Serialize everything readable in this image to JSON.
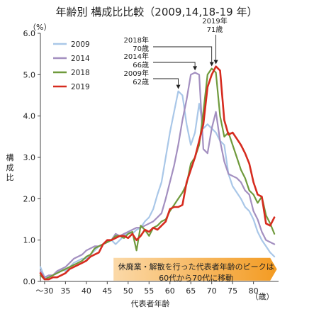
{
  "chart_data": {
    "type": "line",
    "title": "年齢別 構成比比較（2009,14,18-19 年）",
    "ylabel_unit": "（%）",
    "ylabel": "構成比",
    "xlabel": "代表者年齢",
    "x_unit": "（歳）",
    "x_first_tick_label": "～30",
    "xlim": [
      29,
      86
    ],
    "ylim": [
      0,
      6
    ],
    "xticks": [
      30,
      35,
      40,
      45,
      50,
      55,
      60,
      65,
      70,
      75,
      80
    ],
    "xtick_labels": [
      "～30",
      "35",
      "40",
      "45",
      "50",
      "55",
      "60",
      "65",
      "70",
      "75",
      "80"
    ],
    "yticks": [
      0,
      1,
      2,
      3,
      4,
      5,
      6
    ],
    "ytick_labels": [
      "0.0",
      "1.0",
      "2.0",
      "3.0",
      "4.0",
      "5.0",
      "6.0"
    ],
    "grid": false,
    "legend_position": "top-left",
    "series": [
      {
        "name": "2009",
        "color": "#a9c7e8",
        "x": [
          29,
          30,
          31,
          32,
          33,
          34,
          35,
          36,
          37,
          38,
          39,
          40,
          41,
          42,
          43,
          44,
          45,
          46,
          47,
          48,
          49,
          50,
          51,
          52,
          53,
          54,
          55,
          56,
          57,
          58,
          59,
          60,
          61,
          62,
          63,
          64,
          65,
          66,
          67,
          68,
          69,
          70,
          71,
          72,
          73,
          74,
          75,
          76,
          77,
          78,
          79,
          80,
          81,
          82,
          83,
          84,
          85
        ],
        "values": [
          0.35,
          0.1,
          0.1,
          0.15,
          0.2,
          0.3,
          0.25,
          0.35,
          0.45,
          0.5,
          0.55,
          0.55,
          0.65,
          0.75,
          0.85,
          0.9,
          0.95,
          1.0,
          0.9,
          1.0,
          1.1,
          1.2,
          1.15,
          1.25,
          1.3,
          1.45,
          1.55,
          1.75,
          2.1,
          2.4,
          3.0,
          3.6,
          4.1,
          4.6,
          4.5,
          3.8,
          3.3,
          3.6,
          4.3,
          3.7,
          3.8,
          3.7,
          3.6,
          3.4,
          3.3,
          2.6,
          2.3,
          2.15,
          2.0,
          1.8,
          1.7,
          1.5,
          1.2,
          1.0,
          0.85,
          0.7,
          0.6
        ]
      },
      {
        "name": "2014",
        "color": "#a38fc0",
        "x": [
          29,
          30,
          31,
          32,
          33,
          34,
          35,
          36,
          37,
          38,
          39,
          40,
          41,
          42,
          43,
          44,
          45,
          46,
          47,
          48,
          49,
          50,
          51,
          52,
          53,
          54,
          55,
          56,
          57,
          58,
          59,
          60,
          61,
          62,
          63,
          64,
          65,
          66,
          67,
          68,
          69,
          70,
          71,
          72,
          73,
          74,
          75,
          76,
          77,
          78,
          79,
          80,
          81,
          82,
          83,
          84,
          85
        ],
        "values": [
          0.25,
          0.1,
          0.15,
          0.15,
          0.25,
          0.3,
          0.35,
          0.45,
          0.55,
          0.6,
          0.65,
          0.75,
          0.8,
          0.85,
          0.85,
          0.9,
          0.95,
          1.0,
          1.15,
          1.1,
          1.15,
          1.2,
          1.25,
          1.3,
          1.3,
          1.35,
          1.4,
          1.45,
          1.55,
          1.65,
          2.0,
          2.4,
          2.8,
          3.3,
          3.9,
          4.4,
          5.0,
          5.05,
          5.0,
          3.2,
          3.1,
          3.7,
          4.1,
          3.4,
          2.9,
          2.6,
          2.55,
          2.5,
          2.4,
          2.2,
          2.1,
          1.7,
          1.5,
          1.2,
          1.0,
          0.95,
          0.9
        ]
      },
      {
        "name": "2018",
        "color": "#6f9a3c",
        "x": [
          29,
          30,
          31,
          32,
          33,
          34,
          35,
          36,
          37,
          38,
          39,
          40,
          41,
          42,
          43,
          44,
          45,
          46,
          47,
          48,
          49,
          50,
          51,
          52,
          53,
          54,
          55,
          56,
          57,
          58,
          59,
          60,
          61,
          62,
          63,
          64,
          65,
          66,
          67,
          68,
          69,
          70,
          71,
          72,
          73,
          74,
          75,
          76,
          77,
          78,
          79,
          80,
          81,
          82,
          83,
          84,
          85
        ],
        "values": [
          0.15,
          0.05,
          0.1,
          0.15,
          0.2,
          0.25,
          0.3,
          0.35,
          0.4,
          0.45,
          0.5,
          0.6,
          0.65,
          0.8,
          0.85,
          0.9,
          0.95,
          1.0,
          1.1,
          1.1,
          1.05,
          1.15,
          1.2,
          0.75,
          1.35,
          1.25,
          1.1,
          1.3,
          1.35,
          1.45,
          1.5,
          1.7,
          1.85,
          2.0,
          2.15,
          2.35,
          2.85,
          3.0,
          3.3,
          4.1,
          5.0,
          5.15,
          5.05,
          4.0,
          3.5,
          3.6,
          3.3,
          3.0,
          2.7,
          2.5,
          2.2,
          2.1,
          1.9,
          2.05,
          1.6,
          1.4,
          1.15
        ]
      },
      {
        "name": "2019",
        "color": "#d62b1f",
        "x": [
          29,
          30,
          31,
          32,
          33,
          34,
          35,
          36,
          37,
          38,
          39,
          40,
          41,
          42,
          43,
          44,
          45,
          46,
          47,
          48,
          49,
          50,
          51,
          52,
          53,
          54,
          55,
          56,
          57,
          58,
          59,
          60,
          61,
          62,
          63,
          64,
          65,
          66,
          67,
          68,
          69,
          70,
          71,
          72,
          73,
          74,
          75,
          76,
          77,
          78,
          79,
          80,
          81,
          82,
          83,
          84,
          85
        ],
        "values": [
          0.2,
          0.05,
          0.05,
          0.1,
          0.1,
          0.15,
          0.2,
          0.3,
          0.35,
          0.4,
          0.45,
          0.5,
          0.6,
          0.65,
          0.7,
          0.9,
          1.0,
          1.0,
          1.05,
          1.1,
          1.1,
          1.05,
          1.15,
          1.0,
          1.1,
          1.25,
          1.2,
          1.3,
          1.25,
          1.35,
          1.45,
          1.75,
          1.8,
          1.8,
          1.85,
          2.4,
          2.7,
          3.0,
          3.4,
          3.8,
          4.7,
          5.0,
          5.2,
          5.1,
          3.9,
          3.55,
          3.6,
          3.45,
          3.3,
          3.1,
          2.85,
          2.4,
          2.1,
          2.05,
          1.4,
          1.35,
          1.55
        ]
      }
    ],
    "annotations": [
      {
        "lines": [
          "2019年",
          "71歳"
        ],
        "peak_x": 71,
        "peak_y": 5.2
      },
      {
        "lines": [
          "2018年",
          "70歳"
        ],
        "peak_x": 70,
        "peak_y": 5.15
      },
      {
        "lines": [
          "2014年",
          "66歳"
        ],
        "peak_x": 66,
        "peak_y": 5.05
      },
      {
        "lines": [
          "2009年",
          "62歳"
        ],
        "peak_x": 62,
        "peak_y": 4.6
      }
    ],
    "banner": {
      "lines": [
        "休廃業・解散を行った代表者年齢のピークは",
        "60代から70代に移動"
      ],
      "fill": "#f7a437"
    }
  }
}
